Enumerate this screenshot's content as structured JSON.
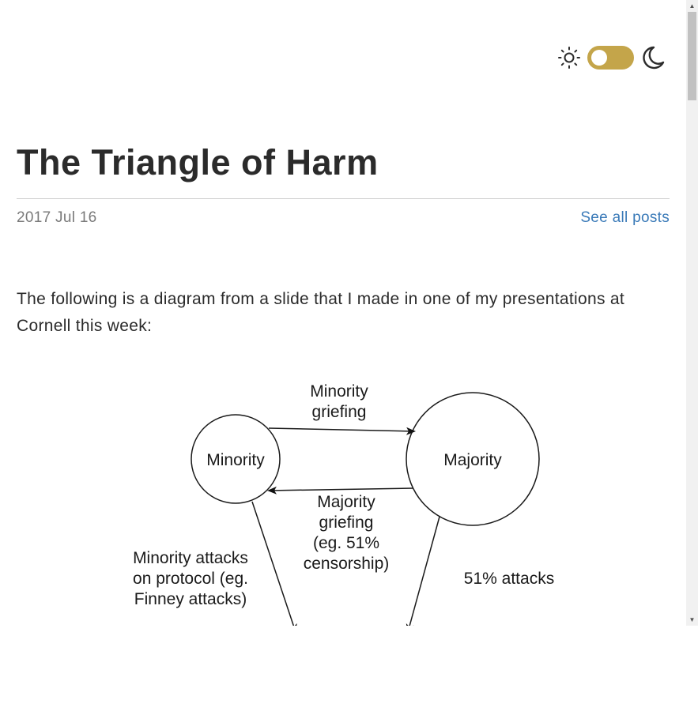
{
  "header": {
    "theme_switcher": {
      "light_icon": "sun-icon",
      "dark_icon": "moon-icon",
      "toggle_color": "#c4a54a"
    }
  },
  "post": {
    "title": "The Triangle of Harm",
    "date": "2017 Jul 16",
    "all_posts_link": "See all posts",
    "intro": "The following is a diagram from a slide that I made in one of my presentations at Cornell this week:"
  },
  "diagram": {
    "nodes": {
      "minority": "Minority",
      "majority": "Majority"
    },
    "edges": {
      "minority_griefing": [
        "Minority",
        "griefing"
      ],
      "majority_griefing": [
        "Majority",
        "griefing",
        "(eg. 51%",
        "censorship)"
      ],
      "minority_attacks": [
        "Minority attacks",
        "on protocol (eg.",
        "Finney attacks)"
      ],
      "fifty_one_attacks": "51% attacks"
    }
  }
}
